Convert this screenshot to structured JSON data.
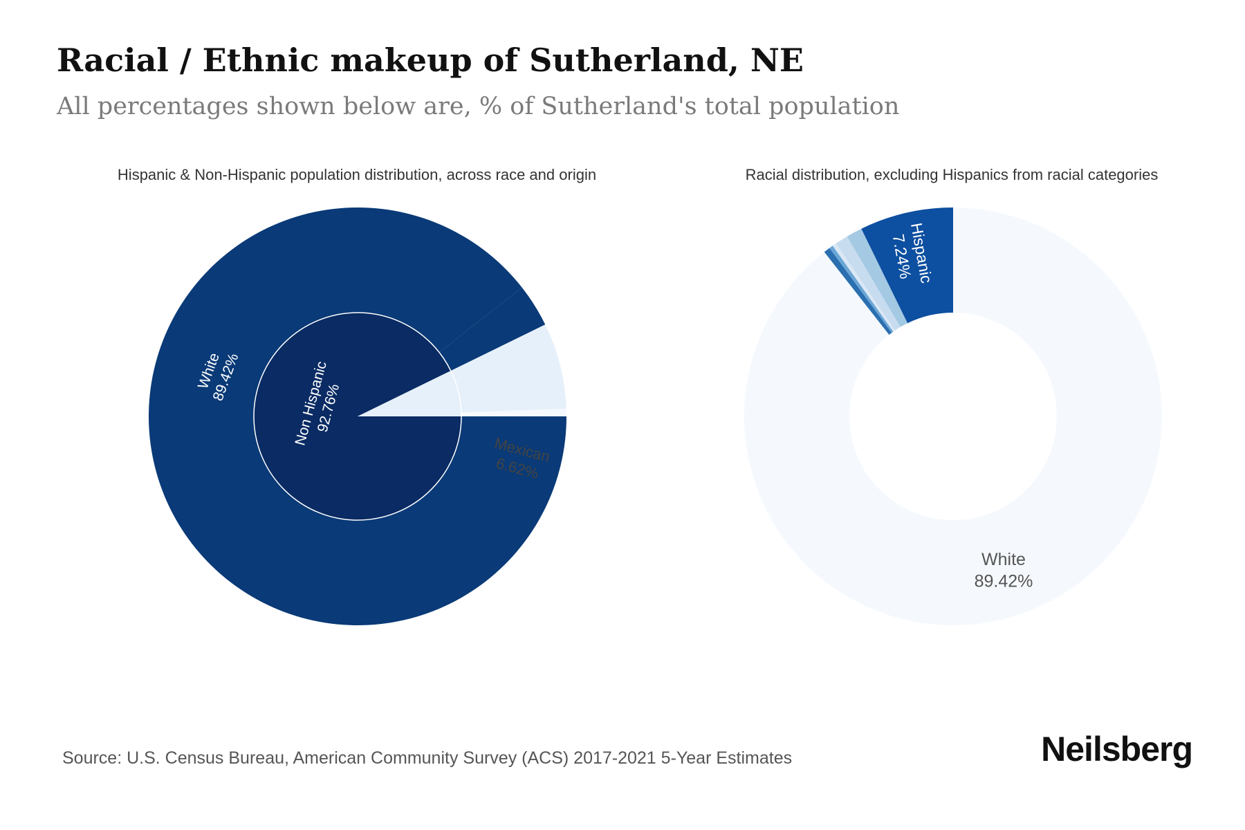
{
  "header": {
    "title": "Racial / Ethnic makeup of Sutherland, NE",
    "subtitle": "All percentages shown below are, % of Sutherland's total population"
  },
  "footer": {
    "source": "Source: U.S. Census Bureau, American Community Survey (ACS) 2017-2021 5-Year Estimates",
    "brand": "Neilsberg"
  },
  "chart_data": [
    {
      "type": "pie",
      "subtype": "sunburst",
      "title": "Hispanic & Non-Hispanic population distribution, across race and origin",
      "inner": [
        {
          "label": "Non Hispanic",
          "value": 92.76,
          "color": "#0a2b63"
        },
        {
          "label": "",
          "value": 7.24,
          "color": "#e6f0fa"
        }
      ],
      "outer": [
        {
          "label": "White",
          "value": 89.42,
          "color": "#0a3a77"
        },
        {
          "label": "",
          "value": 3.34,
          "color": "#0a3a77"
        },
        {
          "label": "Mexican",
          "value": 6.62,
          "color": "#e6f0fa"
        },
        {
          "label": "",
          "value": 0.62,
          "color": "#eef5fc"
        }
      ],
      "labels_shown": [
        {
          "name": "Non Hispanic",
          "value": "92.76%"
        },
        {
          "name": "White",
          "value": "89.42%"
        },
        {
          "name": "Mexican",
          "value": "6.62%"
        }
      ]
    },
    {
      "type": "pie",
      "subtype": "donut",
      "title": "Racial distribution, excluding Hispanics from racial categories",
      "slices": [
        {
          "label": "White",
          "value": 89.42,
          "color": "#f5f9fd"
        },
        {
          "label": "",
          "value": 0.5,
          "color": "#2a6fb0"
        },
        {
          "label": "",
          "value": 0.3,
          "color": "#6aa6d6"
        },
        {
          "label": "",
          "value": 0.3,
          "color": "#dbe8f5"
        },
        {
          "label": "",
          "value": 1.0,
          "color": "#c8dcef"
        },
        {
          "label": "",
          "value": 1.24,
          "color": "#a3c9e3"
        },
        {
          "label": "Hispanic",
          "value": 7.24,
          "color": "#0d4fa0"
        }
      ],
      "labels_shown": [
        {
          "name": "Hispanic",
          "value": "7.24%"
        },
        {
          "name": "White",
          "value": "89.42%"
        }
      ]
    }
  ]
}
